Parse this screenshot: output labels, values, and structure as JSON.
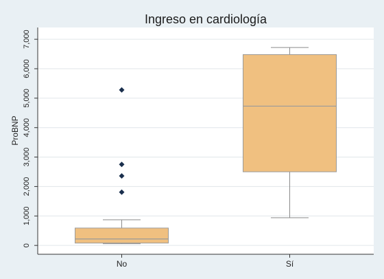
{
  "chart_data": {
    "type": "box",
    "title": "Ingreso en cardiología",
    "xlabel": "",
    "ylabel": "ProBNP",
    "ylim": [
      -300,
      7400
    ],
    "yticks": [
      0,
      1000,
      2000,
      3000,
      4000,
      5000,
      6000,
      7000
    ],
    "ytick_labels": [
      "0",
      "1,000",
      "2,000",
      "3,000",
      "4,000",
      "5,000",
      "6,000",
      "7,000"
    ],
    "categories": [
      "No",
      "Sí"
    ],
    "boxes": [
      {
        "category": "No",
        "whisker_low": 60,
        "q1": 80,
        "median": 220,
        "q3": 590,
        "whisker_high": 870,
        "outliers": [
          1810,
          2360,
          2750,
          5280
        ]
      },
      {
        "category": "Sí",
        "whisker_low": 940,
        "q1": 2500,
        "median": 4730,
        "q3": 6480,
        "whisker_high": 6720,
        "outliers": []
      }
    ],
    "grid": true,
    "colors": {
      "box_fill": "#f0c080",
      "box_stroke": "#9a9a9a",
      "whisker": "#8a8a8a",
      "outlier": "#1a2f4d",
      "grid": "#e0e6ea",
      "plot_bg": "#ffffff",
      "background": "#e9f0f4"
    }
  }
}
